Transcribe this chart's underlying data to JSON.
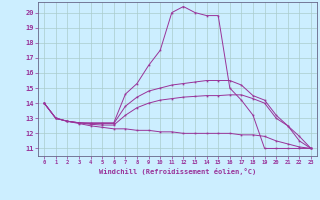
{
  "bg_color": "#cceeff",
  "grid_color": "#aacccc",
  "line_color": "#993399",
  "xlim": [
    -0.5,
    23.5
  ],
  "ylim": [
    10.5,
    20.7
  ],
  "yticks": [
    11,
    12,
    13,
    14,
    15,
    16,
    17,
    18,
    19,
    20
  ],
  "xticks": [
    0,
    1,
    2,
    3,
    4,
    5,
    6,
    7,
    8,
    9,
    10,
    11,
    12,
    13,
    14,
    15,
    16,
    17,
    18,
    19,
    20,
    21,
    22,
    23
  ],
  "xlabel": "Windchill (Refroidissement éolien,°C)",
  "series": [
    {
      "x": [
        0,
        1,
        2,
        3,
        4,
        5,
        6,
        7,
        8,
        9,
        10,
        11,
        12,
        13,
        14,
        15,
        16,
        17,
        18,
        19,
        20,
        21,
        22,
        23
      ],
      "y": [
        14.0,
        13.0,
        12.8,
        12.7,
        12.7,
        12.7,
        12.7,
        14.6,
        15.3,
        16.5,
        17.5,
        20.0,
        20.4,
        20.0,
        19.8,
        19.8,
        15.0,
        14.2,
        13.2,
        11.0,
        11.0,
        11.0,
        11.0,
        11.0
      ]
    },
    {
      "x": [
        0,
        1,
        2,
        3,
        4,
        5,
        6,
        7,
        8,
        9,
        10,
        11,
        12,
        13,
        14,
        15,
        16,
        17,
        18,
        19,
        20,
        21,
        22,
        23
      ],
      "y": [
        14.0,
        13.0,
        12.8,
        12.7,
        12.65,
        12.65,
        12.65,
        13.8,
        14.4,
        14.8,
        15.0,
        15.2,
        15.3,
        15.4,
        15.5,
        15.5,
        15.5,
        15.2,
        14.5,
        14.2,
        13.2,
        12.5,
        11.5,
        11.0
      ]
    },
    {
      "x": [
        0,
        1,
        2,
        3,
        4,
        5,
        6,
        7,
        8,
        9,
        10,
        11,
        12,
        13,
        14,
        15,
        16,
        17,
        18,
        19,
        20,
        21,
        22,
        23
      ],
      "y": [
        14.0,
        13.0,
        12.8,
        12.7,
        12.6,
        12.55,
        12.55,
        13.2,
        13.7,
        14.0,
        14.2,
        14.3,
        14.4,
        14.45,
        14.5,
        14.5,
        14.55,
        14.55,
        14.3,
        14.0,
        13.0,
        12.5,
        11.8,
        11.0
      ]
    },
    {
      "x": [
        0,
        1,
        2,
        3,
        4,
        5,
        6,
        7,
        8,
        9,
        10,
        11,
        12,
        13,
        14,
        15,
        16,
        17,
        18,
        19,
        20,
        21,
        22,
        23
      ],
      "y": [
        14.0,
        13.0,
        12.8,
        12.65,
        12.5,
        12.4,
        12.3,
        12.3,
        12.2,
        12.2,
        12.1,
        12.1,
        12.0,
        12.0,
        12.0,
        12.0,
        12.0,
        11.9,
        11.9,
        11.8,
        11.5,
        11.3,
        11.1,
        11.0
      ]
    }
  ]
}
